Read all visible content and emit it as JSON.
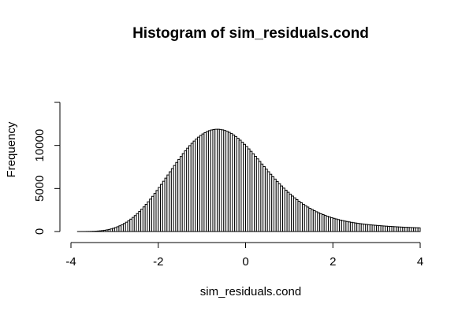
{
  "chart_data": {
    "type": "bar",
    "title": "Histogram of sim_residuals.cond",
    "xlabel": "sim_residuals.cond",
    "ylabel": "Frequency",
    "bin_width": 0.05,
    "bin_start": -3.85,
    "bin_end": 4.0,
    "xlim": [
      -4,
      4
    ],
    "ylim": [
      0,
      15000
    ],
    "x_ticks": [
      -4,
      -2,
      0,
      2,
      4
    ],
    "y_ticks": [
      0,
      5000,
      10000,
      15000
    ],
    "x_tick_labels": [
      "-4",
      "-2",
      "0",
      "2",
      "4"
    ],
    "y_tick_labels": [
      "0",
      "5000",
      "10000",
      ""
    ],
    "values": [
      1,
      2,
      3,
      5,
      8,
      12,
      19,
      28,
      41,
      59,
      82,
      110,
      144,
      187,
      239,
      302,
      375,
      459,
      556,
      666,
      791,
      929,
      1083,
      1252,
      1436,
      1636,
      1851,
      2082,
      2328,
      2588,
      2863,
      3150,
      3452,
      3765,
      4090,
      4424,
      4768,
      5119,
      5477,
      5839,
      6205,
      6572,
      6940,
      7306,
      7669,
      8027,
      8378,
      8720,
      9052,
      9373,
      9680,
      9972,
      10247,
      10505,
      10744,
      10962,
      11159,
      11334,
      11486,
      11614,
      11717,
      11796,
      11849,
      11877,
      11880,
      11857,
      11809,
      11737,
      11641,
      11521,
      11379,
      11216,
      11033,
      10831,
      10612,
      10377,
      10128,
      9867,
      9596,
      9315,
      9027,
      8735,
      8438,
      8138,
      7838,
      7539,
      7241,
      6947,
      6656,
      6371,
      6091,
      5818,
      5552,
      5293,
      5042,
      4799,
      4564,
      4338,
      4120,
      3911,
      3711,
      3520,
      3337,
      3164,
      2998,
      2842,
      2693,
      2553,
      2420,
      2295,
      2177,
      2066,
      1962,
      1864,
      1772,
      1686,
      1605,
      1529,
      1458,
      1391,
      1328,
      1270,
      1215,
      1164,
      1116,
      1071,
      1029,
      989,
      952,
      917,
      884,
      853,
      823,
      796,
      770,
      745,
      722,
      700,
      679,
      659,
      640,
      622,
      605,
      588,
      573,
      558,
      543,
      530,
      516,
      504,
      492,
      480,
      469,
      458,
      448,
      438,
      428
    ]
  }
}
